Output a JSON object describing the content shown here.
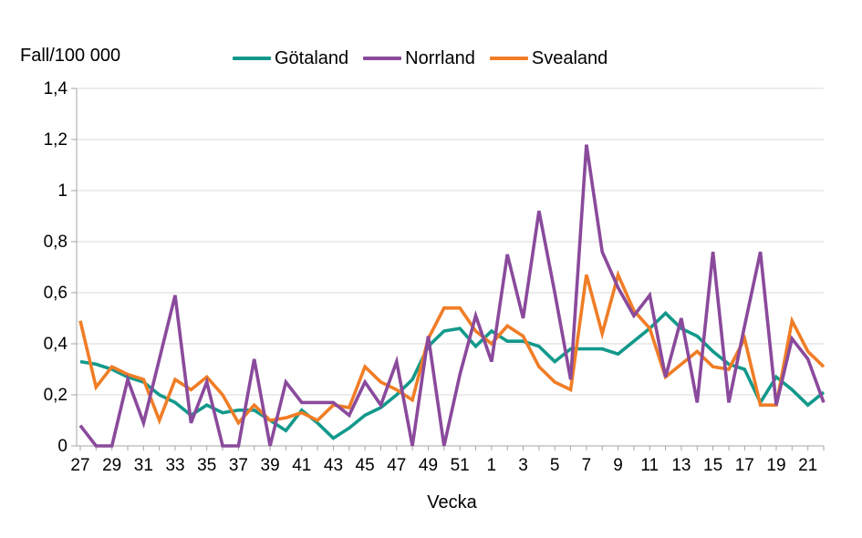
{
  "chart_data": {
    "type": "line",
    "title": "Fall/100 000",
    "xlabel": "Vecka",
    "ylabel": "Fall/100 000",
    "ylim": [
      0,
      1.4
    ],
    "grid": "horizontal-light-gray",
    "legend_position": "top-center",
    "y_tick_labels": [
      "0",
      "0,2",
      "0,4",
      "0,6",
      "0,8",
      "1",
      "1,2",
      "1,4"
    ],
    "y_tick_values": [
      0,
      0.2,
      0.4,
      0.6,
      0.8,
      1.0,
      1.2,
      1.4
    ],
    "x_tick_labels_shown": [
      "27",
      "29",
      "31",
      "33",
      "35",
      "37",
      "39",
      "41",
      "43",
      "45",
      "47",
      "49",
      "51",
      "1",
      "3",
      "5",
      "7",
      "9",
      "11",
      "13",
      "15",
      "17",
      "19",
      "21"
    ],
    "categories": [
      "27",
      "28",
      "29",
      "30",
      "31",
      "32",
      "33",
      "34",
      "35",
      "36",
      "37",
      "38",
      "39",
      "40",
      "41",
      "42",
      "43",
      "44",
      "45",
      "46",
      "47",
      "48",
      "49",
      "50",
      "51",
      "52",
      "1",
      "2",
      "3",
      "4",
      "5",
      "6",
      "7",
      "8",
      "9",
      "10",
      "11",
      "12",
      "13",
      "14",
      "15",
      "16",
      "17",
      "18",
      "19",
      "20",
      "21",
      "22"
    ],
    "series": [
      {
        "name": "Götaland",
        "color": "#12998B",
        "values": [
          0.33,
          0.32,
          0.3,
          0.27,
          0.25,
          0.2,
          0.17,
          0.12,
          0.16,
          0.13,
          0.14,
          0.14,
          0.1,
          0.06,
          0.14,
          0.09,
          0.03,
          0.07,
          0.12,
          0.15,
          0.2,
          0.26,
          0.39,
          0.45,
          0.46,
          0.39,
          0.45,
          0.41,
          0.41,
          0.39,
          0.33,
          0.38,
          0.38,
          0.38,
          0.36,
          0.41,
          0.46,
          0.52,
          0.46,
          0.43,
          0.37,
          0.32,
          0.3,
          0.17,
          0.27,
          0.22,
          0.16,
          0.21
        ]
      },
      {
        "name": "Norrland",
        "color": "#8A4A9C",
        "values": [
          0.08,
          0.0,
          0.0,
          0.26,
          0.09,
          0.34,
          0.59,
          0.09,
          0.25,
          0.0,
          0.0,
          0.34,
          0.0,
          0.25,
          0.17,
          0.17,
          0.17,
          0.12,
          0.25,
          0.16,
          0.33,
          0.0,
          0.43,
          0.0,
          0.28,
          0.51,
          0.33,
          0.75,
          0.5,
          0.92,
          0.6,
          0.26,
          1.18,
          0.76,
          0.62,
          0.51,
          0.59,
          0.27,
          0.5,
          0.17,
          0.76,
          0.17,
          0.47,
          0.76,
          0.16,
          0.42,
          0.34,
          0.17
        ]
      },
      {
        "name": "Svealand",
        "color": "#F07D26",
        "values": [
          0.49,
          0.23,
          0.31,
          0.28,
          0.26,
          0.1,
          0.26,
          0.22,
          0.27,
          0.2,
          0.09,
          0.16,
          0.1,
          0.11,
          0.13,
          0.1,
          0.16,
          0.15,
          0.31,
          0.25,
          0.22,
          0.18,
          0.42,
          0.54,
          0.54,
          0.45,
          0.4,
          0.47,
          0.43,
          0.31,
          0.25,
          0.22,
          0.67,
          0.44,
          0.67,
          0.53,
          0.46,
          0.27,
          0.32,
          0.37,
          0.31,
          0.3,
          0.42,
          0.16,
          0.16,
          0.49,
          0.37,
          0.31
        ]
      }
    ]
  },
  "colors": {
    "gridline": "#D9D9D9",
    "axis": "#A6A6A6",
    "text": "#000000",
    "background": "#FFFFFF"
  }
}
